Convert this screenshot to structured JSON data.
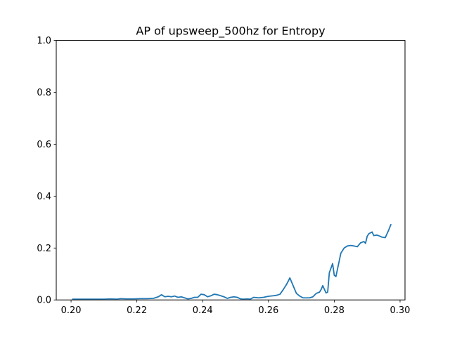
{
  "chart_data": {
    "type": "line",
    "title": "AP of upsweep_500hz for Entropy",
    "xlabel": "",
    "ylabel": "",
    "xlim": [
      0.1955,
      0.3015
    ],
    "ylim": [
      0.0,
      1.0
    ],
    "xticks": [
      0.2,
      0.22,
      0.24,
      0.26,
      0.28,
      0.3
    ],
    "xtick_labels": [
      "0.20",
      "0.22",
      "0.24",
      "0.26",
      "0.28",
      "0.30"
    ],
    "yticks": [
      0.0,
      0.2,
      0.4,
      0.6,
      0.8,
      1.0
    ],
    "ytick_labels": [
      "0.0",
      "0.2",
      "0.4",
      "0.6",
      "0.8",
      "1.0"
    ],
    "grid": false,
    "series_color": "#1f77b4",
    "series": [
      {
        "x": [
          0.2005,
          0.202,
          0.204,
          0.206,
          0.208,
          0.21,
          0.212,
          0.214,
          0.215,
          0.217,
          0.219,
          0.221,
          0.223,
          0.225,
          0.226,
          0.2265,
          0.2275,
          0.2285,
          0.2295,
          0.2305,
          0.2315,
          0.2325,
          0.2335,
          0.2345,
          0.2355,
          0.2365,
          0.2375,
          0.2385,
          0.2395,
          0.2405,
          0.2415,
          0.2425,
          0.2435,
          0.2445,
          0.2455,
          0.2465,
          0.2475,
          0.2485,
          0.2495,
          0.2505,
          0.2515,
          0.2525,
          0.2535,
          0.2545,
          0.2555,
          0.257,
          0.2585,
          0.26,
          0.2615,
          0.2625,
          0.2635,
          0.2645,
          0.2655,
          0.266,
          0.2665,
          0.2675,
          0.2685,
          0.2695,
          0.2705,
          0.2715,
          0.2725,
          0.2735,
          0.2745,
          0.2755,
          0.276,
          0.2765,
          0.2775,
          0.278,
          0.2785,
          0.2795,
          0.28,
          0.2805,
          0.2815,
          0.282,
          0.283,
          0.284,
          0.285,
          0.286,
          0.287,
          0.288,
          0.289,
          0.2895,
          0.29,
          0.2905,
          0.2915,
          0.292,
          0.293,
          0.294,
          0.2945,
          0.2955,
          0.2965,
          0.2972
        ],
        "y": [
          0.003,
          0.003,
          0.003,
          0.003,
          0.003,
          0.003,
          0.004,
          0.003,
          0.005,
          0.004,
          0.004,
          0.005,
          0.005,
          0.006,
          0.01,
          0.012,
          0.02,
          0.012,
          0.014,
          0.012,
          0.015,
          0.01,
          0.012,
          0.008,
          0.004,
          0.006,
          0.01,
          0.01,
          0.022,
          0.02,
          0.012,
          0.016,
          0.022,
          0.02,
          0.016,
          0.012,
          0.006,
          0.01,
          0.012,
          0.01,
          0.004,
          0.003,
          0.004,
          0.003,
          0.01,
          0.008,
          0.01,
          0.014,
          0.016,
          0.018,
          0.022,
          0.04,
          0.06,
          0.072,
          0.085,
          0.055,
          0.025,
          0.015,
          0.008,
          0.008,
          0.008,
          0.012,
          0.025,
          0.03,
          0.04,
          0.055,
          0.027,
          0.03,
          0.105,
          0.14,
          0.095,
          0.09,
          0.15,
          0.18,
          0.2,
          0.208,
          0.21,
          0.208,
          0.205,
          0.22,
          0.225,
          0.218,
          0.245,
          0.255,
          0.262,
          0.248,
          0.25,
          0.245,
          0.242,
          0.24,
          0.268,
          0.29
        ]
      }
    ]
  }
}
